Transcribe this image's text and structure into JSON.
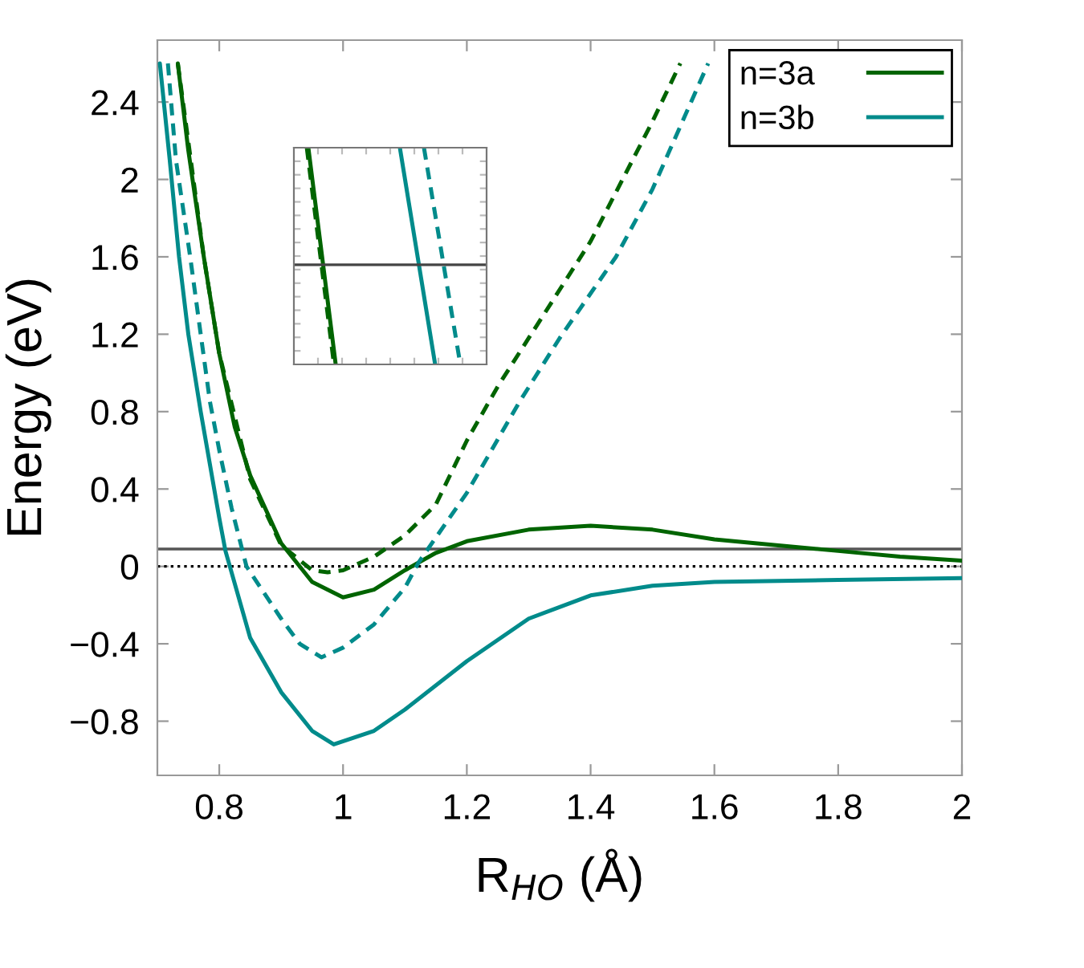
{
  "chart_data": {
    "type": "line",
    "xlabel": "R$_{HO}$ (Å)",
    "ylabel": "Energy (eV)",
    "xlim": [
      0.7,
      2.0
    ],
    "ylim": [
      -1.08,
      2.72
    ],
    "xticks": [
      0.8,
      1,
      1.2,
      1.4,
      1.6,
      1.8,
      2
    ],
    "yticks": [
      {
        "value": -0.8,
        "label": "−0.8"
      },
      {
        "value": -0.4,
        "label": "−0.4"
      },
      0,
      0.4,
      0.8,
      1.2,
      1.6,
      2,
      2.4
    ],
    "grid": false,
    "legend": "top right",
    "ref_lines": [
      {
        "axis": "y",
        "value": 0.09,
        "color": "#555555",
        "line_style": "solid"
      },
      {
        "axis": "y",
        "value": 0,
        "color": "#000000",
        "line_style": "dotted"
      }
    ],
    "series": [
      {
        "name": "n=3a",
        "color": "#006400",
        "line_style": "solid",
        "x": [
          0.733,
          0.75,
          0.775,
          0.8,
          0.825,
          0.85,
          0.9,
          0.95,
          1.0,
          1.05,
          1.1,
          1.15,
          1.2,
          1.3,
          1.4,
          1.5,
          1.6,
          1.7,
          1.8,
          1.9,
          2.0
        ],
        "values": [
          2.6,
          2.15,
          1.6,
          1.1,
          0.72,
          0.47,
          0.12,
          -0.08,
          -0.16,
          -0.12,
          -0.02,
          0.07,
          0.13,
          0.19,
          0.21,
          0.19,
          0.14,
          0.11,
          0.08,
          0.05,
          0.03
        ]
      },
      {
        "name": "n=3b",
        "color": "#008b8b",
        "line_style": "solid",
        "x": [
          0.704,
          0.72,
          0.735,
          0.75,
          0.77,
          0.8,
          0.81,
          0.85,
          0.9,
          0.95,
          0.985,
          1.05,
          1.1,
          1.2,
          1.3,
          1.4,
          1.5,
          1.6,
          1.8,
          2.0
        ],
        "values": [
          2.6,
          2.1,
          1.6,
          1.2,
          0.8,
          0.25,
          0.08,
          -0.37,
          -0.65,
          -0.85,
          -0.92,
          -0.85,
          -0.74,
          -0.49,
          -0.27,
          -0.15,
          -0.1,
          -0.08,
          -0.07,
          -0.06
        ]
      },
      {
        "color": "#006400",
        "line_style": "dashed",
        "x": [
          0.733,
          0.775,
          0.8,
          0.85,
          0.9,
          0.95,
          0.975,
          1.0,
          1.05,
          1.1,
          1.15,
          1.2,
          1.25,
          1.3,
          1.4,
          1.5,
          1.545
        ],
        "values": [
          2.6,
          1.6,
          1.1,
          0.45,
          0.11,
          -0.02,
          -0.03,
          -0.02,
          0.05,
          0.16,
          0.32,
          0.65,
          0.93,
          1.18,
          1.68,
          2.3,
          2.6
        ]
      },
      {
        "color": "#008b8b",
        "line_style": "dashed",
        "x": [
          0.717,
          0.73,
          0.753,
          0.77,
          0.785,
          0.8,
          0.82,
          0.844,
          0.9,
          0.93,
          0.965,
          1.0,
          1.05,
          1.1,
          1.122,
          1.2,
          1.285,
          1.35,
          1.441,
          1.5,
          1.59
        ],
        "values": [
          2.6,
          2.1,
          1.6,
          1.2,
          0.85,
          0.6,
          0.3,
          0.0,
          -0.27,
          -0.4,
          -0.47,
          -0.42,
          -0.3,
          -0.11,
          0.02,
          0.38,
          0.85,
          1.18,
          1.6,
          1.95,
          2.6
        ]
      }
    ]
  }
}
